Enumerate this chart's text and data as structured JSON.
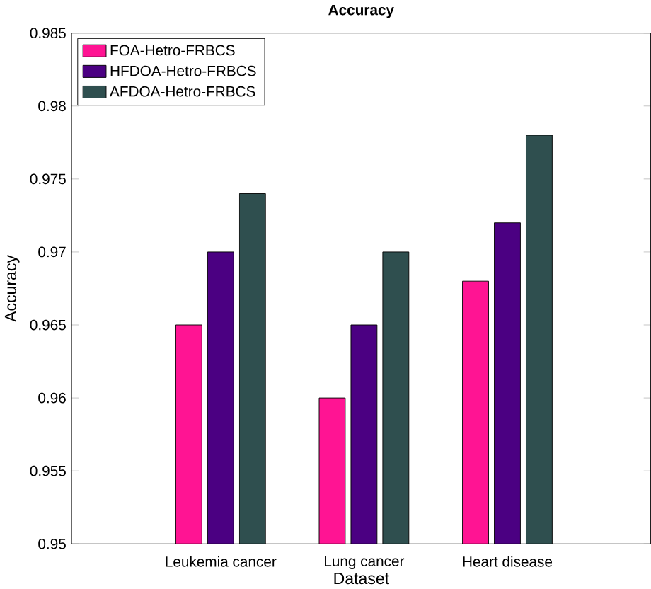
{
  "chart_data": {
    "type": "bar",
    "title": "Accuracy",
    "xlabel": "Dataset",
    "ylabel": "Accuracy",
    "categories": [
      "Leukemia cancer",
      "Lung cancer",
      "Heart disease"
    ],
    "series": [
      {
        "name": "FOA-Hetro-FRBCS",
        "color": "#ff1493",
        "values": [
          0.965,
          0.96,
          0.968
        ]
      },
      {
        "name": "HFDOA-Hetro-FRBCS",
        "color": "#4b0082",
        "values": [
          0.97,
          0.965,
          0.972
        ]
      },
      {
        "name": "AFDOA-Hetro-FRBCS",
        "color": "#2f4f4f",
        "values": [
          0.974,
          0.97,
          0.978
        ]
      }
    ],
    "ylim": [
      0.95,
      0.985
    ],
    "yticks": [
      0.95,
      0.955,
      0.96,
      0.965,
      0.97,
      0.975,
      0.98,
      0.985
    ],
    "grid": false,
    "legend": "top left"
  }
}
